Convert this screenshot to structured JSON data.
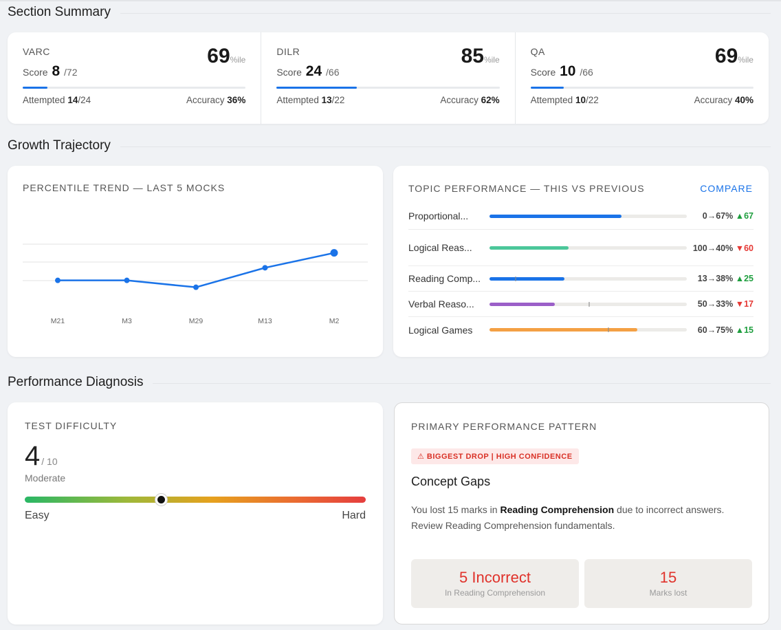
{
  "sections_heading": {
    "summary": "Section Summary",
    "growth": "Growth Trajectory",
    "diagnosis": "Performance Diagnosis"
  },
  "summary": [
    {
      "name": "VARC",
      "percentile": "69",
      "pct_suffix": "%ile",
      "score_label": "Score",
      "score": "8",
      "max": "/72",
      "attempted_label": "Attempted",
      "attempted": "14",
      "attempted_total": "/24",
      "accuracy_label": "Accuracy",
      "accuracy": "36%",
      "progress": 0.11
    },
    {
      "name": "DILR",
      "percentile": "85",
      "pct_suffix": "%ile",
      "score_label": "Score",
      "score": "24",
      "max": "/66",
      "attempted_label": "Attempted",
      "attempted": "13",
      "attempted_total": "/22",
      "accuracy_label": "Accuracy",
      "accuracy": "62%",
      "progress": 0.36
    },
    {
      "name": "QA",
      "percentile": "69",
      "pct_suffix": "%ile",
      "score_label": "Score",
      "score": "10",
      "max": "/66",
      "attempted_label": "Attempted",
      "attempted": "10",
      "attempted_total": "/22",
      "accuracy_label": "Accuracy",
      "accuracy": "40%",
      "progress": 0.15
    }
  ],
  "trend": {
    "title": "PERCENTILE TREND — LAST 5 MOCKS"
  },
  "chart_data": {
    "type": "line",
    "title": "PERCENTILE TREND — LAST 5 MOCKS",
    "categories": [
      "M21",
      "M3",
      "M29",
      "M13",
      "M2"
    ],
    "values": [
      50,
      50,
      44,
      61,
      74
    ],
    "ylim": [
      30,
      90
    ],
    "grid": true,
    "color": "#1a73e8"
  },
  "topics": {
    "title": "TOPIC PERFORMANCE — THIS VS PREVIOUS",
    "compare_label": "COMPARE",
    "rows": [
      {
        "name": "Proportional...",
        "current": 67,
        "previous": 0,
        "text": "0→67%",
        "delta": "▲67",
        "dir": "up",
        "color": "#1a73e8"
      },
      {
        "name": "Logical Reas...",
        "current": 40,
        "previous": 100,
        "text": "100→40%",
        "delta": "▼60",
        "dir": "down",
        "color": "#4cc79a"
      },
      {
        "name": "Reading Comp...",
        "current": 38,
        "previous": 13,
        "text": "13→38%",
        "delta": "▲25",
        "dir": "up",
        "color": "#1a73e8"
      },
      {
        "name": "Verbal Reaso...",
        "current": 33,
        "previous": 50,
        "text": "50→33%",
        "delta": "▼17",
        "dir": "down",
        "color": "#9b5fc8"
      },
      {
        "name": "Logical Games",
        "current": 75,
        "previous": 60,
        "text": "60→75%",
        "delta": "▲15",
        "dir": "up",
        "color": "#f4a044"
      }
    ]
  },
  "difficulty": {
    "title": "TEST DIFFICULTY",
    "value": "4",
    "out_of": "/ 10",
    "level": "Moderate",
    "easy_label": "Easy",
    "hard_label": "Hard",
    "position": 0.4
  },
  "pattern": {
    "title": "PRIMARY PERFORMANCE PATTERN",
    "badge": "⚠ BIGGEST DROP | HIGH CONFIDENCE",
    "heading": "Concept Gaps",
    "desc_pre": "You lost 15 marks in ",
    "desc_bold": "Reading Comprehension",
    "desc_post": " due to incorrect answers. Review Reading Comprehension fundamentals.",
    "stat1_big": "5 Incorrect",
    "stat1_small": "In Reading Comprehension",
    "stat2_big": "15",
    "stat2_small": "Marks lost"
  }
}
